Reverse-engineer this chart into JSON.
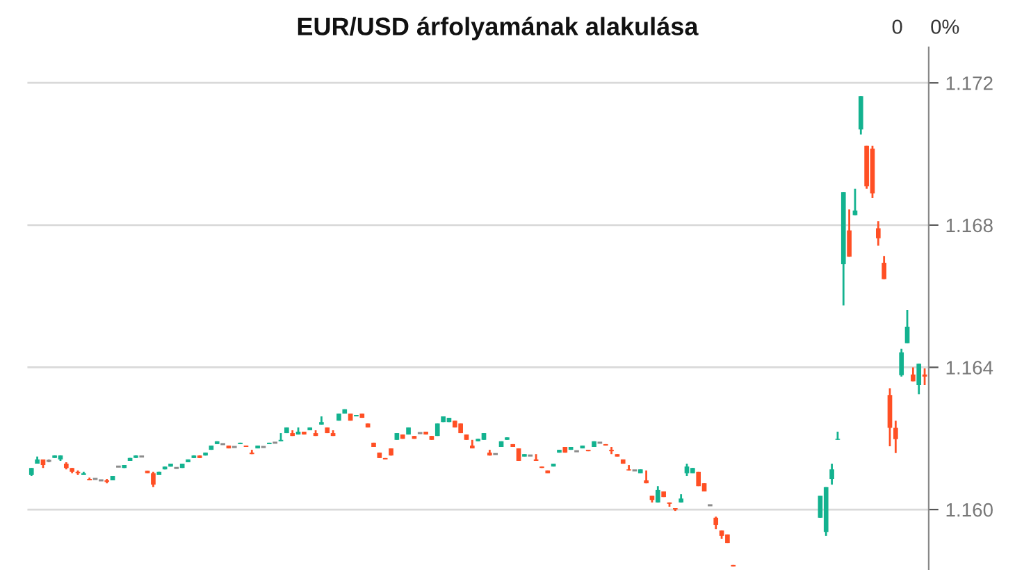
{
  "chart_data": {
    "type": "candlestick",
    "title": "EUR/USD árfolyamának alakulása",
    "annotations": [
      "0",
      "0%"
    ],
    "colors": [
      "#13b28f",
      "#13b28f",
      "#ff4f24",
      "#8c8c8c",
      "#13b28f",
      "#13b28f",
      "#ff4f24",
      "#ff4f24",
      "#ff4f24",
      "#13b28f",
      "#ff4f24",
      "#8c8c8c",
      "#8c8c8c",
      "#ff4f24",
      "#13b28f",
      "#8c8c8c",
      "#13b28f",
      "#13b28f",
      "#13b28f",
      "#8c8c8c",
      "#ff4f24",
      "#ff4f24",
      "#13b28f",
      "#13b28f",
      "#13b28f",
      "#8c8c8c",
      "#13b28f",
      "#13b28f",
      "#13b28f",
      "#ff4f24",
      "#13b28f",
      "#13b28f",
      "#13b28f",
      "#8c8c8c",
      "#ff4f24",
      "#8c8c8c",
      "#13b28f",
      "#ff4f24",
      "#ff4f24",
      "#13b28f",
      "#8c8c8c",
      "#13b28f",
      "#8c8c8c",
      "#13b28f",
      "#13b28f",
      "#ff4f24",
      "#13b28f",
      "#ff4f24",
      "#13b28f",
      "#ff4f24",
      "#13b28f",
      "#ff4f24",
      "#ff4f24",
      "#13b28f",
      "#13b28f",
      "#ff4f24",
      "#13b28f",
      "#ff4f24",
      "#ff4f24",
      "#ff4f24",
      "#ff4f24",
      "#ff4f24",
      "#ff4f24",
      "#13b28f",
      "#ff4f24",
      "#13b28f",
      "#ff4f24",
      "#8c8c8c",
      "#ff4f24",
      "#ff4f24",
      "#13b28f",
      "#13b28f",
      "#13b28f",
      "#ff4f24",
      "#ff4f24",
      "#ff4f24",
      "#ff4f24",
      "#13b28f",
      "#13b28f",
      "#ff4f24",
      "#8c8c8c",
      "#13b28f",
      "#13b28f",
      "#ff4f24",
      "#ff4f24",
      "#13b28f",
      "#8c8c8c",
      "#ff4f24",
      "#ff4f24",
      "#ff4f24",
      "#13b28f",
      "#13b28f",
      "#ff4f24",
      "#13b28f",
      "#8c8c8c",
      "#13b28f",
      "#ff4f24",
      "#13b28f",
      "#8c8c8c",
      "#ff4f24",
      "#ff4f24",
      "#ff4f24",
      "#ff4f24",
      "#ff4f24",
      "#8c8c8c",
      "#13b28f",
      "#ff4f24",
      "#ff4f24",
      "#13b28f",
      "#ff4f24",
      "#ff4f24",
      "#ff4f24",
      "#13b28f",
      "#13b28f",
      "#13b28f",
      "#ff4f24",
      "#ff4f24",
      "#8c8c8c",
      "#ff4f24",
      "#ff4f24",
      "#ff4f24",
      "#ff4f24",
      null,
      null,
      null,
      null,
      null,
      null,
      null,
      null,
      null,
      null,
      null,
      null,
      null,
      null,
      "#13b28f",
      "#13b28f",
      "#13b28f",
      "#13b28f",
      "#13b28f",
      "#ff4f24",
      "#13b28f",
      "#13b28f",
      "#ff4f24",
      "#ff4f24",
      "#ff4f24",
      "#ff4f24",
      "#ff4f24",
      "#ff4f24",
      "#13b28f",
      "#13b28f",
      "#ff4f24",
      "#13b28f",
      "#ff4f24"
    ],
    "ylim": [
      1.1583,
      1.173
    ],
    "yticks": [
      {
        "value": 1.16,
        "label": "1.160"
      },
      1.164,
      1.168,
      1.172
    ],
    "grid": "y",
    "tick_labels": "y",
    "categories": [
      null,
      null,
      null,
      null,
      null,
      null,
      null,
      null,
      null,
      null,
      null,
      null,
      null,
      null,
      null,
      null,
      null,
      null,
      null,
      null,
      null,
      null,
      null,
      null,
      null,
      null,
      null,
      null,
      null,
      null,
      null,
      null,
      null,
      null,
      null,
      null,
      null,
      null,
      null,
      null,
      null,
      null,
      null,
      null,
      null,
      null,
      null,
      null,
      null,
      null,
      null,
      null,
      null,
      null,
      null,
      null,
      null,
      null,
      null,
      null,
      null,
      null,
      null,
      null,
      null,
      null,
      null,
      null,
      null,
      null,
      null,
      null,
      null,
      null,
      null,
      null,
      null,
      null,
      null,
      null,
      null,
      null,
      null,
      null,
      null,
      null,
      null,
      null,
      null,
      null,
      null,
      null,
      null,
      null,
      null,
      null,
      null,
      null,
      null,
      null,
      null,
      null,
      null,
      null,
      null,
      null,
      null,
      null,
      null,
      null,
      null,
      null,
      null,
      null,
      null,
      null,
      null,
      null,
      null,
      null,
      null,
      null,
      null,
      null,
      null,
      null,
      null,
      null,
      null,
      null,
      null,
      null,
      null,
      null,
      null,
      null,
      null,
      null,
      null,
      null,
      null,
      null,
      null,
      null,
      null,
      null,
      null,
      null,
      null,
      null,
      null,
      null,
      null,
      null,
      null
    ],
    "ohlc": [
      [
        1.16098,
        1.16117,
        1.16094,
        1.16117
      ],
      [
        1.16129,
        1.16149,
        1.16129,
        1.16141
      ],
      [
        1.16141,
        1.16141,
        1.16117,
        1.16125
      ],
      [
        1.16137,
        1.16141,
        1.16133,
        1.16137
      ],
      [
        1.16145,
        1.16152,
        1.16145,
        1.16152
      ],
      [
        1.16141,
        1.16152,
        1.16137,
        1.16152
      ],
      [
        1.16129,
        1.16133,
        1.16113,
        1.16117
      ],
      [
        1.16117,
        1.16117,
        1.16102,
        1.16106
      ],
      [
        1.16106,
        1.1611,
        1.16098,
        1.16102
      ],
      [
        1.16098,
        1.16106,
        1.16098,
        1.16102
      ],
      [
        1.16086,
        1.1609,
        1.16082,
        1.16082
      ],
      [
        1.16086,
        1.16086,
        1.16086,
        1.16086
      ],
      [
        1.16082,
        1.16082,
        1.16082,
        1.16082
      ],
      [
        1.16082,
        1.16086,
        1.16074,
        1.16078
      ],
      [
        1.16082,
        1.16094,
        1.16082,
        1.16094
      ],
      [
        1.16121,
        1.16121,
        1.16121,
        1.16121
      ],
      [
        1.16117,
        1.16125,
        1.16117,
        1.16125
      ],
      [
        1.16137,
        1.16145,
        1.16137,
        1.16145
      ],
      [
        1.16145,
        1.16152,
        1.16145,
        1.16152
      ],
      [
        1.16149,
        1.16149,
        1.16149,
        1.16149
      ],
      [
        1.16109,
        1.16109,
        1.16102,
        1.16102
      ],
      [
        1.16102,
        1.16106,
        1.16063,
        1.1607
      ],
      [
        1.16098,
        1.16106,
        1.16098,
        1.16106
      ],
      [
        1.16113,
        1.16121,
        1.16113,
        1.16121
      ],
      [
        1.16121,
        1.16129,
        1.16121,
        1.16129
      ],
      [
        1.16117,
        1.16117,
        1.16117,
        1.16117
      ],
      [
        1.16117,
        1.16129,
        1.16117,
        1.16129
      ],
      [
        1.16133,
        1.16141,
        1.16133,
        1.16141
      ],
      [
        1.16145,
        1.16152,
        1.16145,
        1.16152
      ],
      [
        1.16152,
        1.16152,
        1.16145,
        1.16145
      ],
      [
        1.16152,
        1.1616,
        1.16152,
        1.1616
      ],
      [
        1.16168,
        1.1618,
        1.16168,
        1.1618
      ],
      [
        1.16184,
        1.16192,
        1.16184,
        1.16192
      ],
      [
        1.16184,
        1.16184,
        1.16184,
        1.16184
      ],
      [
        1.1618,
        1.1618,
        1.16172,
        1.16172
      ],
      [
        1.16176,
        1.16176,
        1.16176,
        1.16176
      ],
      [
        1.16184,
        1.16188,
        1.16184,
        1.16188
      ],
      [
        1.1618,
        1.1618,
        1.16176,
        1.16176
      ],
      [
        1.1616,
        1.16168,
        1.16156,
        1.16156
      ],
      [
        1.16172,
        1.1618,
        1.16172,
        1.1618
      ],
      [
        1.16176,
        1.16176,
        1.16176,
        1.16176
      ],
      [
        1.16184,
        1.16188,
        1.16184,
        1.16188
      ],
      [
        1.16188,
        1.16188,
        1.16188,
        1.16188
      ],
      [
        1.16192,
        1.16215,
        1.16192,
        1.16196
      ],
      [
        1.16215,
        1.16231,
        1.16215,
        1.16231
      ],
      [
        1.16215,
        1.16223,
        1.16207,
        1.16207
      ],
      [
        1.16211,
        1.16231,
        1.16211,
        1.16219
      ],
      [
        1.16219,
        1.16219,
        1.16211,
        1.16211
      ],
      [
        1.16223,
        1.16231,
        1.16223,
        1.16231
      ],
      [
        1.16215,
        1.16223,
        1.16207,
        1.16207
      ],
      [
        1.16239,
        1.16262,
        1.16239,
        1.16246
      ],
      [
        1.16231,
        1.16231,
        1.16215,
        1.16215
      ],
      [
        1.16215,
        1.16223,
        1.16207,
        1.16207
      ],
      [
        1.1625,
        1.1627,
        1.1625,
        1.1627
      ],
      [
        1.1627,
        1.16282,
        1.1627,
        1.16282
      ],
      [
        1.1627,
        1.1627,
        1.1625,
        1.1625
      ],
      [
        1.16262,
        1.16266,
        1.16262,
        1.16266
      ],
      [
        1.1627,
        1.1627,
        1.16258,
        1.16258
      ],
      [
        1.16242,
        1.16242,
        1.16231,
        1.16231
      ],
      [
        1.16188,
        1.16188,
        1.16176,
        1.16176
      ],
      [
        1.1616,
        1.1616,
        1.16145,
        1.16145
      ],
      [
        1.16145,
        1.16145,
        1.16141,
        1.16141
      ],
      [
        1.16172,
        1.16172,
        1.16152,
        1.16152
      ],
      [
        1.16196,
        1.16215,
        1.16196,
        1.16215
      ],
      [
        1.16211,
        1.16211,
        1.16199,
        1.16199
      ],
      [
        1.16211,
        1.16231,
        1.16211,
        1.16231
      ],
      [
        1.16207,
        1.16207,
        1.16199,
        1.16199
      ],
      [
        1.16215,
        1.16215,
        1.16215,
        1.16215
      ],
      [
        1.16219,
        1.16219,
        1.16211,
        1.16211
      ],
      [
        1.16207,
        1.16207,
        1.16196,
        1.16196
      ],
      [
        1.16207,
        1.16242,
        1.16207,
        1.16242
      ],
      [
        1.16246,
        1.16262,
        1.16246,
        1.16262
      ],
      [
        1.16246,
        1.16258,
        1.16246,
        1.16258
      ],
      [
        1.1625,
        1.1625,
        1.16231,
        1.16231
      ],
      [
        1.16242,
        1.16242,
        1.16215,
        1.16215
      ],
      [
        1.16211,
        1.16211,
        1.16196,
        1.16196
      ],
      [
        1.1618,
        1.16196,
        1.16172,
        1.16172
      ],
      [
        1.16192,
        1.16199,
        1.16192,
        1.16199
      ],
      [
        1.16196,
        1.16215,
        1.16196,
        1.16215
      ],
      [
        1.1616,
        1.16168,
        1.16152,
        1.16152
      ],
      [
        1.16156,
        1.16156,
        1.16156,
        1.16156
      ],
      [
        1.16176,
        1.16192,
        1.16176,
        1.16192
      ],
      [
        1.16196,
        1.16203,
        1.16196,
        1.16203
      ],
      [
        1.16184,
        1.16184,
        1.16176,
        1.16176
      ],
      [
        1.16172,
        1.16172,
        1.16137,
        1.16137
      ],
      [
        1.16149,
        1.16156,
        1.16149,
        1.16156
      ],
      [
        1.16152,
        1.16152,
        1.16152,
        1.16152
      ],
      [
        1.16141,
        1.16156,
        1.16137,
        1.16137
      ],
      [
        1.16121,
        1.16121,
        1.16117,
        1.16117
      ],
      [
        1.1611,
        1.1611,
        1.16102,
        1.16102
      ],
      [
        1.16121,
        1.16129,
        1.16121,
        1.16129
      ],
      [
        1.1616,
        1.16168,
        1.1616,
        1.16168
      ],
      [
        1.16176,
        1.16176,
        1.1616,
        1.1616
      ],
      [
        1.16168,
        1.16176,
        1.16168,
        1.16176
      ],
      [
        1.16164,
        1.16164,
        1.16164,
        1.16164
      ],
      [
        1.16172,
        1.1618,
        1.16172,
        1.1618
      ],
      [
        1.16168,
        1.16168,
        1.16164,
        1.16164
      ],
      [
        1.16176,
        1.16192,
        1.16176,
        1.16192
      ],
      [
        1.16188,
        1.16188,
        1.16188,
        1.16188
      ],
      [
        1.16184,
        1.16184,
        1.1618,
        1.1618
      ],
      [
        1.16168,
        1.16176,
        1.16156,
        1.16164
      ],
      [
        1.16156,
        1.16156,
        1.16149,
        1.16149
      ],
      [
        1.16141,
        1.16141,
        1.16129,
        1.16129
      ],
      [
        1.16113,
        1.16125,
        1.1611,
        1.1611
      ],
      [
        1.1611,
        1.1611,
        1.1611,
        1.1611
      ],
      [
        1.16102,
        1.16113,
        1.16102,
        1.16113
      ],
      [
        1.16082,
        1.1611,
        1.16074,
        1.16074
      ],
      [
        1.16039,
        1.16039,
        1.1602,
        1.16027
      ],
      [
        1.1602,
        1.16066,
        1.1602,
        1.16055
      ],
      [
        1.16051,
        1.16051,
        1.16035,
        1.16035
      ],
      [
        1.1602,
        1.1602,
        1.16008,
        1.16016
      ],
      [
        1.16004,
        1.16004,
        1.15996,
        1.16
      ],
      [
        1.1602,
        1.16043,
        1.1602,
        1.16031
      ],
      [
        1.16102,
        1.16129,
        1.16094,
        1.16121
      ],
      [
        1.16102,
        1.16117,
        1.16102,
        1.16117
      ],
      [
        1.16106,
        1.16106,
        1.16066,
        1.16066
      ],
      [
        1.16074,
        1.16074,
        1.16051,
        1.16051
      ],
      [
        1.16012,
        1.16012,
        1.16012,
        1.16012
      ],
      [
        1.15977,
        1.1598,
        1.15945,
        1.15957
      ],
      [
        1.15941,
        1.15941,
        1.15918,
        1.15926
      ],
      [
        1.1593,
        1.1593,
        1.15906,
        1.15906
      ],
      [
        1.15844,
        1.15844,
        1.1584,
        1.1584
      ],
      null,
      null,
      null,
      null,
      null,
      null,
      null,
      null,
      null,
      null,
      null,
      null,
      null,
      null,
      [
        1.15977,
        1.16039,
        1.15977,
        1.16039
      ],
      [
        1.15937,
        1.16063,
        1.15926,
        1.16063
      ],
      [
        1.16086,
        1.16129,
        1.1607,
        1.16113
      ],
      [
        1.16196,
        1.16219,
        1.16196,
        1.16199
      ],
      [
        1.1669,
        1.16893,
        1.16574,
        1.16893
      ],
      [
        1.16785,
        1.16844,
        1.16711,
        1.16711
      ],
      [
        1.16828,
        1.16902,
        1.16828,
        1.16841
      ],
      [
        1.17069,
        1.17163,
        1.17055,
        1.17163
      ],
      [
        1.17023,
        1.17023,
        1.16902,
        1.16909
      ],
      [
        1.17015,
        1.17023,
        1.16876,
        1.16889
      ],
      [
        1.16791,
        1.16811,
        1.16742,
        1.16763
      ],
      [
        1.16694,
        1.16713,
        1.16648,
        1.16648
      ],
      [
        1.16322,
        1.16341,
        1.16178,
        1.1623
      ],
      [
        1.1623,
        1.1625,
        1.16159,
        1.16198
      ],
      [
        1.16378,
        1.16452,
        1.16374,
        1.16442
      ],
      [
        1.16468,
        1.16561,
        1.16468,
        1.16514
      ],
      [
        1.1638,
        1.164,
        1.16361,
        1.16361
      ],
      [
        1.1635,
        1.1641,
        1.16324,
        1.1641
      ],
      [
        1.1638,
        1.16397,
        1.1635,
        1.16374
      ]
    ]
  }
}
